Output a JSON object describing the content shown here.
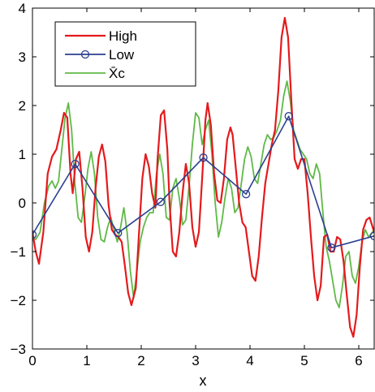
{
  "chart_data": {
    "type": "line",
    "title": "",
    "xlabel": "x",
    "ylabel": "",
    "xlim": [
      0,
      6.2832
    ],
    "ylim": [
      -3,
      4
    ],
    "xticks": [
      0,
      1,
      2,
      3,
      4,
      5,
      6
    ],
    "yticks": [
      -3,
      -2,
      -1,
      0,
      1,
      2,
      3,
      4
    ],
    "ytick_labels": [
      "−3",
      "−2",
      "−1",
      "0",
      "1",
      "2",
      "3",
      "4"
    ],
    "grid": false,
    "legend_position": "top-left",
    "series": [
      {
        "name": "High",
        "color": "#e41a1c",
        "marker": "none",
        "x": [
          0.0,
          0.06,
          0.12,
          0.2,
          0.28,
          0.36,
          0.44,
          0.52,
          0.58,
          0.64,
          0.7,
          0.74,
          0.8,
          0.86,
          0.92,
          0.98,
          1.04,
          1.1,
          1.16,
          1.22,
          1.28,
          1.34,
          1.4,
          1.46,
          1.52,
          1.58,
          1.64,
          1.7,
          1.76,
          1.82,
          1.9,
          1.96,
          2.02,
          2.08,
          2.14,
          2.2,
          2.26,
          2.3,
          2.36,
          2.42,
          2.48,
          2.52,
          2.58,
          2.64,
          2.7,
          2.76,
          2.82,
          2.88,
          2.94,
          3.0,
          3.06,
          3.12,
          3.18,
          3.22,
          3.28,
          3.34,
          3.4,
          3.46,
          3.52,
          3.58,
          3.64,
          3.68,
          3.74,
          3.8,
          3.86,
          3.92,
          3.98,
          4.04,
          4.1,
          4.16,
          4.22,
          4.28,
          4.34,
          4.4,
          4.46,
          4.52,
          4.58,
          4.64,
          4.7,
          4.76,
          4.82,
          4.88,
          4.94,
          5.0,
          5.06,
          5.12,
          5.18,
          5.24,
          5.3,
          5.36,
          5.42,
          5.48,
          5.54,
          5.6,
          5.66,
          5.72,
          5.78,
          5.84,
          5.9,
          5.96,
          6.02,
          6.08,
          6.14,
          6.2,
          6.2832
        ],
        "values": [
          -0.6,
          -1.0,
          -1.25,
          -0.6,
          0.6,
          0.95,
          1.1,
          1.5,
          1.85,
          1.75,
          0.6,
          0.2,
          0.9,
          1.05,
          0.3,
          -0.7,
          -1.0,
          -0.6,
          0.3,
          0.95,
          1.2,
          0.85,
          -0.05,
          -0.55,
          -0.65,
          -0.7,
          -0.8,
          -1.3,
          -1.85,
          -2.1,
          -1.75,
          -0.6,
          0.5,
          1.0,
          0.75,
          0.2,
          -0.1,
          0.9,
          1.8,
          1.9,
          1.1,
          0.0,
          -1.0,
          -1.1,
          -0.6,
          0.2,
          0.8,
          0.4,
          -0.5,
          -0.9,
          -0.6,
          0.5,
          1.7,
          2.05,
          1.6,
          0.6,
          0.05,
          0.0,
          0.5,
          1.3,
          1.55,
          1.4,
          0.7,
          0.0,
          -0.4,
          -0.5,
          -1.0,
          -1.5,
          -1.6,
          -1.1,
          -0.3,
          0.4,
          0.8,
          1.2,
          1.5,
          2.3,
          3.4,
          3.8,
          3.4,
          2.1,
          0.9,
          0.7,
          0.9,
          0.9,
          0.2,
          -0.7,
          -1.5,
          -2.0,
          -1.7,
          -0.7,
          -0.65,
          -1.0,
          -1.0,
          -0.7,
          -0.75,
          -1.2,
          -1.9,
          -2.55,
          -2.75,
          -2.3,
          -1.3,
          -0.55,
          -0.35,
          -0.3,
          -0.6
        ]
      },
      {
        "name": "Low",
        "color": "#2b3f8f",
        "marker": "circle",
        "x": [
          0.0,
          0.785,
          1.571,
          2.356,
          3.142,
          3.927,
          4.712,
          5.498,
          6.2832
        ],
        "values": [
          -0.65,
          0.8,
          -0.62,
          0.02,
          0.93,
          0.18,
          1.78,
          -0.92,
          -0.68
        ]
      },
      {
        "name": "X̄c",
        "color": "#5fb946",
        "marker": "none",
        "x": [
          0.0,
          0.06,
          0.14,
          0.22,
          0.3,
          0.36,
          0.42,
          0.48,
          0.54,
          0.6,
          0.66,
          0.72,
          0.78,
          0.84,
          0.9,
          0.96,
          1.02,
          1.08,
          1.14,
          1.2,
          1.26,
          1.32,
          1.38,
          1.44,
          1.5,
          1.56,
          1.62,
          1.68,
          1.74,
          1.8,
          1.86,
          1.92,
          1.98,
          2.04,
          2.1,
          2.16,
          2.22,
          2.28,
          2.34,
          2.4,
          2.46,
          2.52,
          2.58,
          2.64,
          2.7,
          2.76,
          2.82,
          2.88,
          2.94,
          3.0,
          3.06,
          3.12,
          3.18,
          3.24,
          3.3,
          3.36,
          3.42,
          3.48,
          3.54,
          3.6,
          3.66,
          3.72,
          3.78,
          3.84,
          3.9,
          3.96,
          4.02,
          4.08,
          4.14,
          4.2,
          4.26,
          4.32,
          4.38,
          4.44,
          4.5,
          4.56,
          4.62,
          4.68,
          4.74,
          4.8,
          4.86,
          4.92,
          4.98,
          5.04,
          5.1,
          5.16,
          5.22,
          5.28,
          5.34,
          5.4,
          5.46,
          5.52,
          5.58,
          5.64,
          5.7,
          5.76,
          5.82,
          5.88,
          5.94,
          6.0,
          6.06,
          6.12,
          6.18,
          6.2832
        ],
        "values": [
          -0.7,
          -0.75,
          -0.6,
          0.0,
          0.35,
          0.45,
          0.3,
          0.45,
          1.1,
          1.75,
          2.05,
          1.5,
          0.4,
          -0.3,
          -0.4,
          0.1,
          0.7,
          1.05,
          0.6,
          -0.3,
          -0.75,
          -0.8,
          -0.5,
          -0.3,
          -0.55,
          -0.8,
          -0.5,
          -0.1,
          -0.6,
          -1.4,
          -1.95,
          -1.4,
          -0.8,
          -0.5,
          -0.3,
          -0.2,
          -0.2,
          0.6,
          1.0,
          0.6,
          -0.3,
          -0.35,
          0.3,
          0.5,
          0.1,
          -0.45,
          -0.35,
          0.35,
          1.2,
          1.85,
          1.75,
          1.2,
          1.5,
          1.7,
          1.0,
          0.0,
          -0.7,
          -0.4,
          0.1,
          0.5,
          0.3,
          -0.2,
          -0.1,
          0.4,
          0.9,
          1.15,
          0.95,
          0.5,
          0.4,
          0.8,
          1.2,
          1.4,
          1.3,
          1.35,
          1.5,
          1.7,
          2.2,
          2.5,
          2.1,
          1.5,
          1.3,
          1.1,
          1.0,
          0.9,
          0.6,
          0.5,
          0.8,
          0.6,
          -0.2,
          -0.9,
          -1.2,
          -1.6,
          -2.0,
          -2.15,
          -1.7,
          -1.1,
          -1.0,
          -1.5,
          -1.65,
          -1.3,
          -0.8,
          -0.55,
          -0.7,
          -0.55
        ]
      }
    ]
  }
}
